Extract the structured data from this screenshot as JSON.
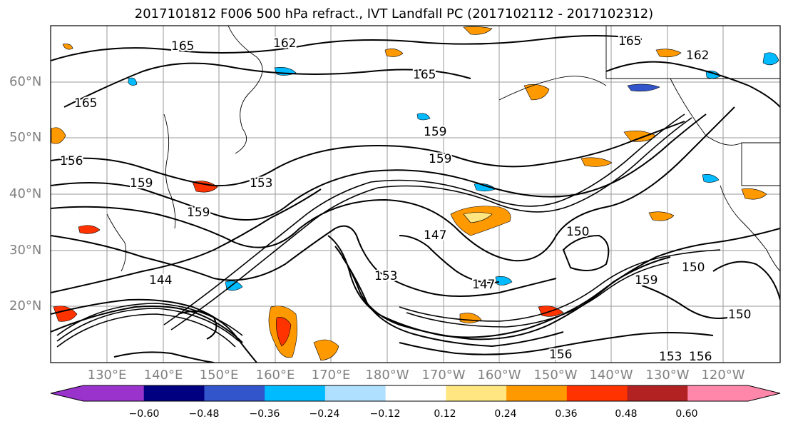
{
  "title": "2017101812 F006 500 hPa refract., IVT Landfall PC (2017102112 - 2017102312)",
  "lat_labels": [
    "60°N",
    "50°N",
    "40°N",
    "30°N",
    "20°N"
  ],
  "lon_labels": [
    "130°E",
    "140°E",
    "150°E",
    "160°E",
    "170°E",
    "180°W",
    "170°W",
    "160°W",
    "150°W",
    "140°W",
    "130°W",
    "120°W"
  ],
  "contour_labels": [
    "165",
    "162",
    "165",
    "165",
    "162",
    "165",
    "159",
    "159",
    "156",
    "159",
    "153",
    "159",
    "150",
    "147",
    "144",
    "159",
    "150",
    "147",
    "150",
    "153",
    "156",
    "156",
    "153"
  ],
  "colorbar": {
    "extend": "both",
    "tick_labels": [
      "−0.60",
      "−0.48",
      "−0.36",
      "−0.24",
      "−0.12",
      "0.12",
      "0.24",
      "0.36",
      "0.48",
      "0.60"
    ],
    "colors": [
      "#9933cc",
      "#000080",
      "#3355cc",
      "#00bbff",
      "#b0e0ff",
      "#ffffff",
      "#ffe680",
      "#ff9900",
      "#ff3300",
      "#b22222",
      "#ff88aa"
    ]
  }
}
